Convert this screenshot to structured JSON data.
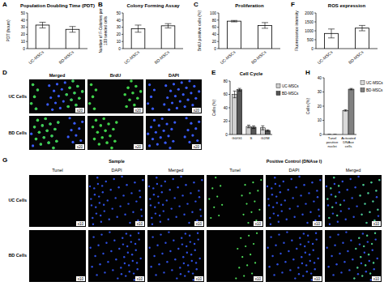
{
  "chart_data": [
    {
      "panel": "A",
      "type": "bar",
      "title": "Population Doubling Time (PDT)",
      "y_label": "PDT (hours)",
      "categories": [
        "UC-MSCs",
        "BD-MSCs"
      ],
      "values": [
        33,
        27
      ],
      "errors": [
        4,
        4
      ],
      "colors": [
        "#ffffff",
        "#ffffff"
      ],
      "ylim": [
        0,
        50
      ],
      "yticks": [
        0,
        10,
        20,
        30,
        40,
        50
      ]
    },
    {
      "panel": "B",
      "type": "bar",
      "title": "Colony Forming Assay",
      "y_label": [
        "Number of F-Colonies per",
        "100 seeded cells"
      ],
      "categories": [
        "UC-MSCs",
        "BD-MSCs"
      ],
      "values": [
        28,
        32
      ],
      "errors": [
        5,
        3
      ],
      "colors": [
        "#ffffff",
        "#ffffff"
      ],
      "ylim": [
        0,
        50
      ],
      "yticks": [
        0,
        10,
        20,
        30,
        40,
        50
      ]
    },
    {
      "panel": "C",
      "type": "bar",
      "title": "Proliferation",
      "y_label": "BrdU positive cells (%)",
      "categories": [
        "UC-MSCs",
        "BD-MSCs"
      ],
      "values": [
        77,
        65
      ],
      "errors": [
        2,
        8
      ],
      "colors": [
        "#ffffff",
        "#ffffff"
      ],
      "ylim": [
        0,
        100
      ],
      "yticks": [
        0,
        20,
        40,
        60,
        80,
        100
      ]
    },
    {
      "panel": "F",
      "type": "bar",
      "title": "ROS expression",
      "y_label": "Fluorescence intensity",
      "categories": [
        "UC-MSCs",
        "BD-MSCs"
      ],
      "values": [
        850,
        1150
      ],
      "errors": [
        250,
        150
      ],
      "colors": [
        "#ffffff",
        "#ffffff"
      ],
      "ylim": [
        0,
        2000
      ],
      "yticks": [
        0,
        500,
        1000,
        1500,
        2000
      ]
    },
    {
      "panel": "E",
      "type": "bar",
      "title": "Cell Cycle",
      "y_label": "Cells (%)",
      "categories": [
        "G0/G1",
        "S",
        "G2/M"
      ],
      "series": [
        {
          "name": "UC-MSCs",
          "color": "#cfcfcf",
          "values": [
            60,
            12,
            10
          ],
          "errors": [
            5,
            2,
            3
          ]
        },
        {
          "name": "BD-MSCs",
          "color": "#555555",
          "values": [
            67,
            11,
            6
          ],
          "errors": [
            2,
            2,
            1
          ]
        }
      ],
      "ylim": [
        0,
        80
      ],
      "yticks": [
        0,
        20,
        40,
        60,
        80
      ],
      "legend": "right"
    },
    {
      "panel": "H",
      "type": "bar",
      "y_label": "Cells (%)",
      "categories": [
        "Tunel positive nuclei",
        "Activated DNAse cells"
      ],
      "series": [
        {
          "name": "UC-MSCs",
          "color": "#d9d9d9",
          "values": [
            0,
            17
          ],
          "errors": [
            0,
            0.5
          ]
        },
        {
          "name": "BD-MSCs",
          "color": "#808080",
          "values": [
            0,
            32
          ],
          "errors": [
            0,
            0.5
          ]
        }
      ],
      "ylim": [
        0,
        40
      ],
      "yticks": [
        0,
        10,
        20,
        30,
        40
      ],
      "legend": "right"
    }
  ],
  "micrographs": {
    "panel": "D",
    "columns": [
      "Merged",
      "BrdU",
      "DAPI"
    ],
    "rows": [
      "UC Cells",
      "BD Cells"
    ],
    "magnification": "x20"
  },
  "tunel_images": {
    "panel": "G",
    "groups": [
      "Sample",
      "Positive Control (DNAse I)"
    ],
    "columns": [
      "Tunel",
      "DAPI",
      "Merged",
      "Tunel",
      "DAPI",
      "Merged"
    ],
    "rows": [
      "UC Cells",
      "BD Cells"
    ],
    "magnification": "x10"
  }
}
